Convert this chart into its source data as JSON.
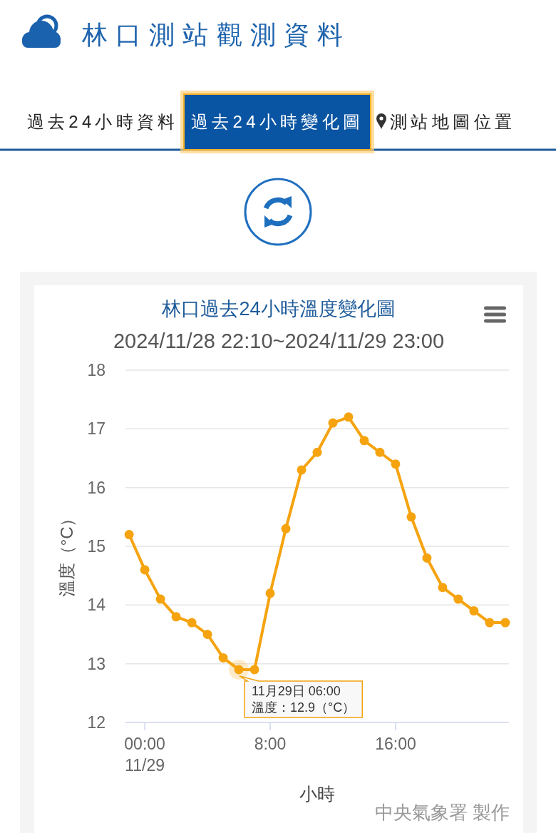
{
  "chart_data": {
    "type": "line",
    "title": "林口過去24小時溫度變化圖",
    "subtitle": "2024/11/28 22:10~2024/11/29 23:00",
    "xlabel": "小時",
    "ylabel": "溫度（°C）",
    "x": [
      "2024-11-28T23:00",
      "2024-11-29T00:00",
      "2024-11-29T01:00",
      "2024-11-29T02:00",
      "2024-11-29T03:00",
      "2024-11-29T04:00",
      "2024-11-29T05:00",
      "2024-11-29T06:00",
      "2024-11-29T07:00",
      "2024-11-29T08:00",
      "2024-11-29T09:00",
      "2024-11-29T10:00",
      "2024-11-29T11:00",
      "2024-11-29T12:00",
      "2024-11-29T13:00",
      "2024-11-29T14:00",
      "2024-11-29T15:00",
      "2024-11-29T16:00",
      "2024-11-29T17:00",
      "2024-11-29T18:00",
      "2024-11-29T19:00",
      "2024-11-29T20:00",
      "2024-11-29T21:00",
      "2024-11-29T22:00",
      "2024-11-29T23:00"
    ],
    "series": [
      {
        "color": "#f5a30f",
        "values": [
          15.2,
          14.6,
          14.1,
          13.8,
          13.7,
          13.5,
          13.1,
          12.9,
          12.9,
          14.2,
          15.3,
          16.3,
          16.6,
          17.1,
          17.2,
          16.8,
          16.6,
          16.4,
          15.5,
          14.8,
          14.3,
          14.1,
          13.9,
          13.7,
          13.7
        ]
      }
    ],
    "xlim": [
      "2024-11-28T22:46",
      "2024-11-29T23:14"
    ],
    "xticks": [
      {
        "value": "2024-11-29T00:00",
        "label": "00:00\n11/29"
      },
      {
        "value": "2024-11-29T08:00",
        "label": "8:00"
      },
      {
        "value": "2024-11-29T16:00",
        "label": "16:00"
      }
    ],
    "ylim": [
      12,
      18
    ],
    "yticks": [
      12,
      13,
      14,
      15,
      16,
      17,
      18
    ],
    "grid": "y",
    "marker": "circle",
    "line_style": "solid",
    "annotations": [
      "林口測站觀測資料",
      "過去24小時資料",
      "過去24小時變化圖",
      "測站地圖位置",
      {
        "text": "11月29日 06:00\n溫度：12.9（°C）",
        "x": "2024-11-29T06:00",
        "y": 12.9
      },
      "中央氣象署 製作"
    ]
  }
}
